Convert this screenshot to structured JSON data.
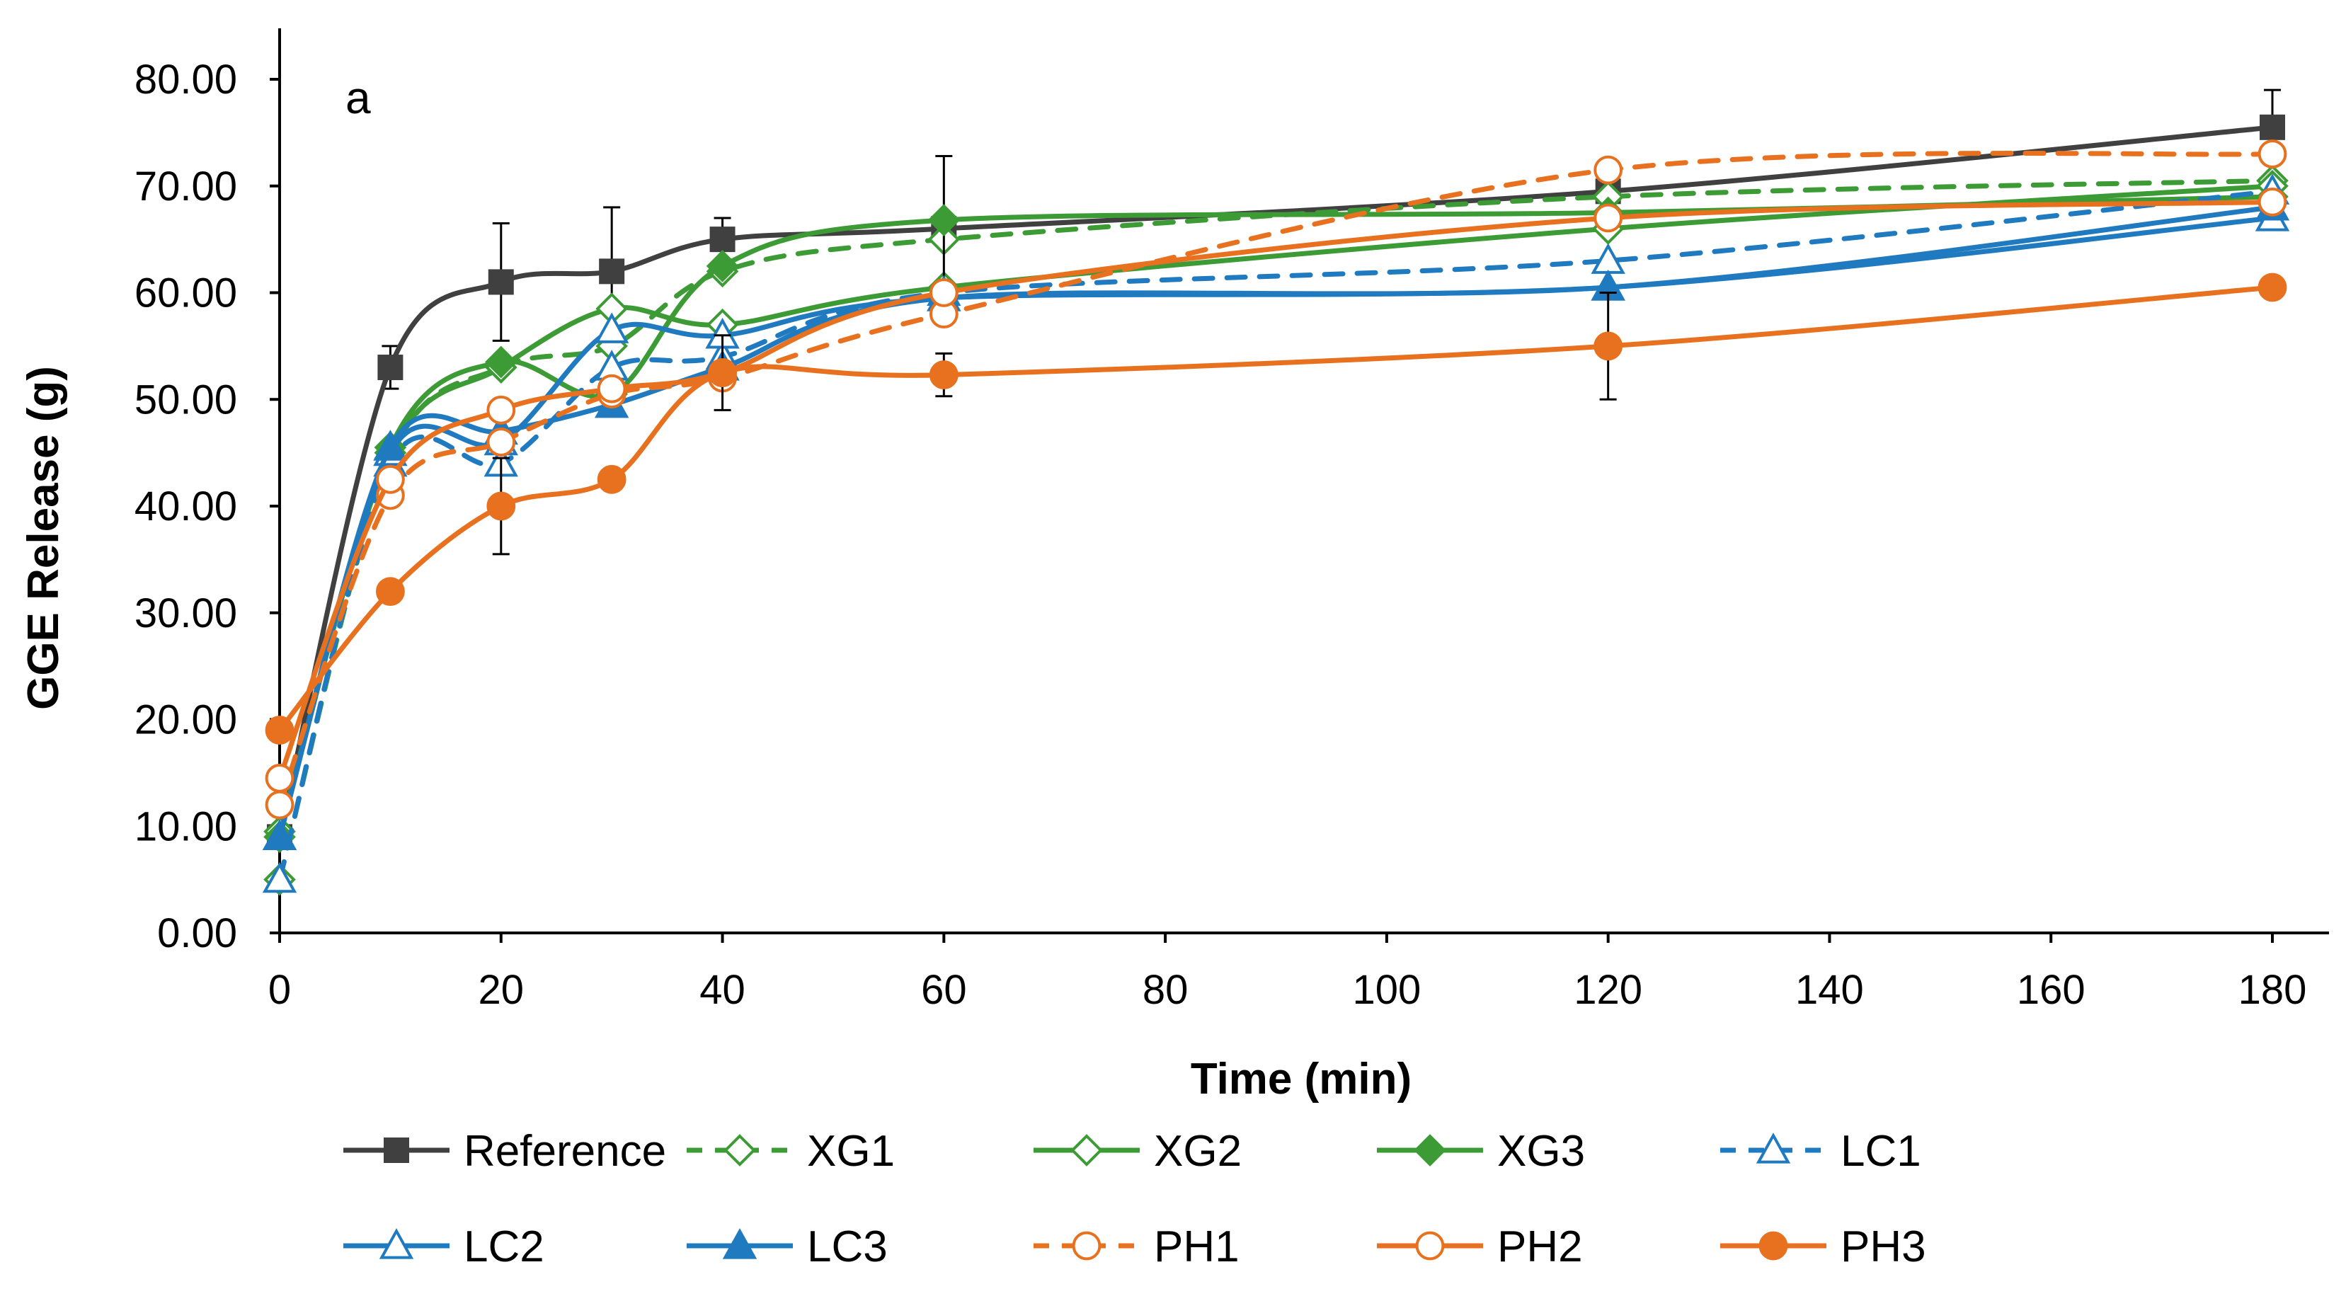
{
  "chart_data": {
    "type": "line",
    "panel_label": "a",
    "title": "",
    "xlabel": "Time (min)",
    "ylabel": "GGE Release (g)",
    "xlim": [
      0,
      180
    ],
    "ylim": [
      0,
      80
    ],
    "x_ticks": [
      "0",
      "20",
      "40",
      "60",
      "80",
      "100",
      "120",
      "140",
      "160",
      "180"
    ],
    "y_ticks": [
      "0.00",
      "10.00",
      "20.00",
      "30.00",
      "40.00",
      "50.00",
      "60.00",
      "70.00",
      "80.00"
    ],
    "x": [
      0,
      10,
      20,
      30,
      40,
      60,
      120,
      180
    ],
    "legend_position": "bottom",
    "series": [
      {
        "name": "Reference",
        "color": "#404040",
        "dash": "solid",
        "marker": "square",
        "fill": "solid",
        "values": [
          9.0,
          53.0,
          61.0,
          62.0,
          65.0,
          66.0,
          69.5,
          75.5
        ],
        "errors": [
          0,
          2,
          5.5,
          6,
          2,
          0,
          0,
          3.5
        ]
      },
      {
        "name": "XG1",
        "color": "#3d9b35",
        "dash": "dashed",
        "marker": "diamond",
        "fill": "open",
        "values": [
          5.0,
          44.5,
          53.0,
          55.0,
          62.0,
          65.0,
          69.0,
          70.5
        ],
        "errors": [
          0,
          0,
          0,
          0,
          0,
          0,
          0,
          0
        ]
      },
      {
        "name": "XG2",
        "color": "#3d9b35",
        "dash": "solid",
        "marker": "diamond",
        "fill": "open",
        "values": [
          9.5,
          45.0,
          53.0,
          58.5,
          57.0,
          60.5,
          66.0,
          70.0
        ],
        "errors": [
          0,
          0,
          0,
          0,
          0,
          0,
          0,
          0
        ]
      },
      {
        "name": "XG3",
        "color": "#3d9b35",
        "dash": "solid",
        "marker": "diamond",
        "fill": "solid",
        "values": [
          9.0,
          45.5,
          53.5,
          50.5,
          62.5,
          66.8,
          67.5,
          69.0
        ],
        "errors": [
          0,
          0,
          0,
          0,
          0,
          6,
          0,
          0
        ]
      },
      {
        "name": "LC1",
        "color": "#1f7ac0",
        "dash": "dashed",
        "marker": "triangle",
        "fill": "open",
        "values": [
          5.0,
          44.0,
          44.0,
          53.0,
          54.0,
          60.0,
          63.0,
          69.5
        ],
        "errors": [
          0,
          0,
          0,
          0,
          0,
          0,
          0,
          0
        ]
      },
      {
        "name": "LC2",
        "color": "#1f7ac0",
        "dash": "solid",
        "marker": "triangle",
        "fill": "open",
        "values": [
          9.0,
          45.0,
          46.0,
          56.5,
          56.0,
          59.5,
          60.5,
          67.0
        ],
        "errors": [
          0,
          0,
          0,
          0,
          0,
          0,
          0,
          0
        ]
      },
      {
        "name": "LC3",
        "color": "#1f7ac0",
        "dash": "solid",
        "marker": "triangle",
        "fill": "solid",
        "values": [
          9.0,
          45.5,
          47.0,
          49.5,
          53.0,
          59.5,
          60.5,
          68.0
        ],
        "errors": [
          0,
          0,
          0,
          0,
          0,
          0,
          0,
          0
        ]
      },
      {
        "name": "PH1",
        "color": "#e8711f",
        "dash": "dashed",
        "marker": "circle",
        "fill": "open",
        "values": [
          12.0,
          41.0,
          46.0,
          50.5,
          52.0,
          58.0,
          71.5,
          73.0
        ],
        "errors": [
          0,
          0,
          0,
          0,
          0,
          0,
          0,
          0
        ]
      },
      {
        "name": "PH2",
        "color": "#e8711f",
        "dash": "solid",
        "marker": "circle",
        "fill": "open",
        "values": [
          14.5,
          42.5,
          49.0,
          51.0,
          52.5,
          60.0,
          67.0,
          68.5
        ],
        "errors": [
          0,
          0,
          0,
          0,
          0,
          0,
          0,
          0
        ]
      },
      {
        "name": "PH3",
        "color": "#e8711f",
        "dash": "solid",
        "marker": "circle",
        "fill": "solid",
        "values": [
          19.0,
          32.0,
          40.0,
          42.5,
          52.5,
          52.3,
          55.0,
          60.5
        ],
        "errors": [
          0,
          0,
          4.5,
          0,
          3.5,
          2,
          5,
          0
        ]
      }
    ]
  }
}
